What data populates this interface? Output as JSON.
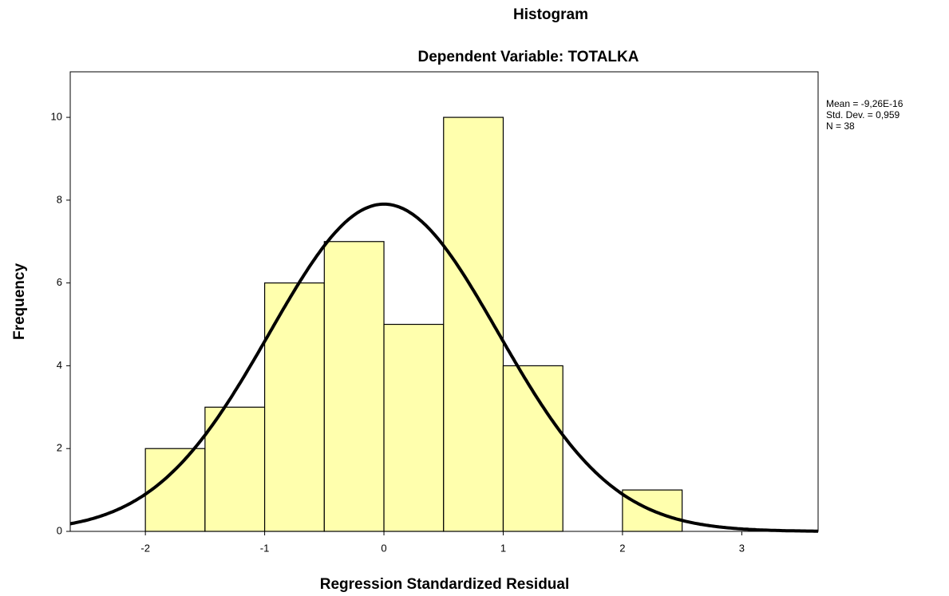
{
  "chart_data": {
    "type": "histogram",
    "title": "Histogram",
    "subtitle": "Dependent Variable: TOTALKA",
    "x_label": "Regression Standardized Residual",
    "y_label": "Frequency",
    "bins": [
      -2,
      -1.5,
      -1,
      -0.5,
      0,
      0.5,
      1,
      1.5,
      2,
      2.5
    ],
    "values": [
      2,
      3,
      6,
      7,
      5,
      10,
      4,
      0,
      1
    ],
    "color": "#ffffad",
    "xlim": [
      -2.63,
      3.64
    ],
    "xticks": [
      -2,
      -1,
      0,
      1,
      2,
      3
    ],
    "ylim": [
      0,
      11.1
    ],
    "yticks": [
      0,
      2,
      4,
      6,
      8,
      10
    ],
    "curve": {
      "mean": -9.26e-16,
      "sd": 0.959,
      "n": 38
    },
    "stats_labels": [
      "Mean = -9,26E-16",
      "Std. Dev. = 0,959",
      "N = 38"
    ]
  }
}
